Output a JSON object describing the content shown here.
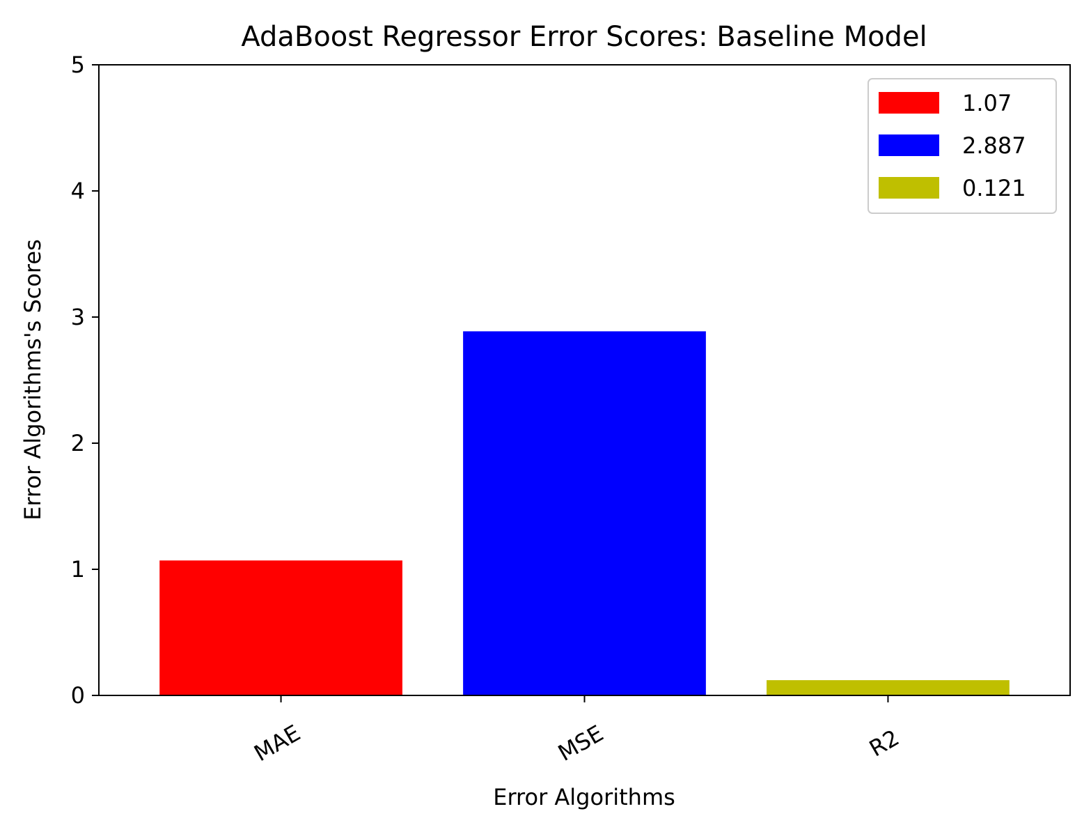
{
  "chart_data": {
    "type": "bar",
    "title": "AdaBoost Regressor Error Scores: Baseline Model",
    "xlabel": "Error Algorithms",
    "ylabel": "Error Algorithms's Scores",
    "categories": [
      "MAE",
      "MSE",
      "R2"
    ],
    "values": [
      1.07,
      2.887,
      0.121
    ],
    "colors": [
      "#ff0000",
      "#0000ff",
      "#bfbf00"
    ],
    "ylim": [
      0,
      5
    ],
    "yticks": [
      "0",
      "1",
      "2",
      "3",
      "4",
      "5"
    ],
    "grid": false,
    "legend_position": "top-right",
    "legend": [
      "1.07",
      "2.887",
      "0.121"
    ]
  }
}
